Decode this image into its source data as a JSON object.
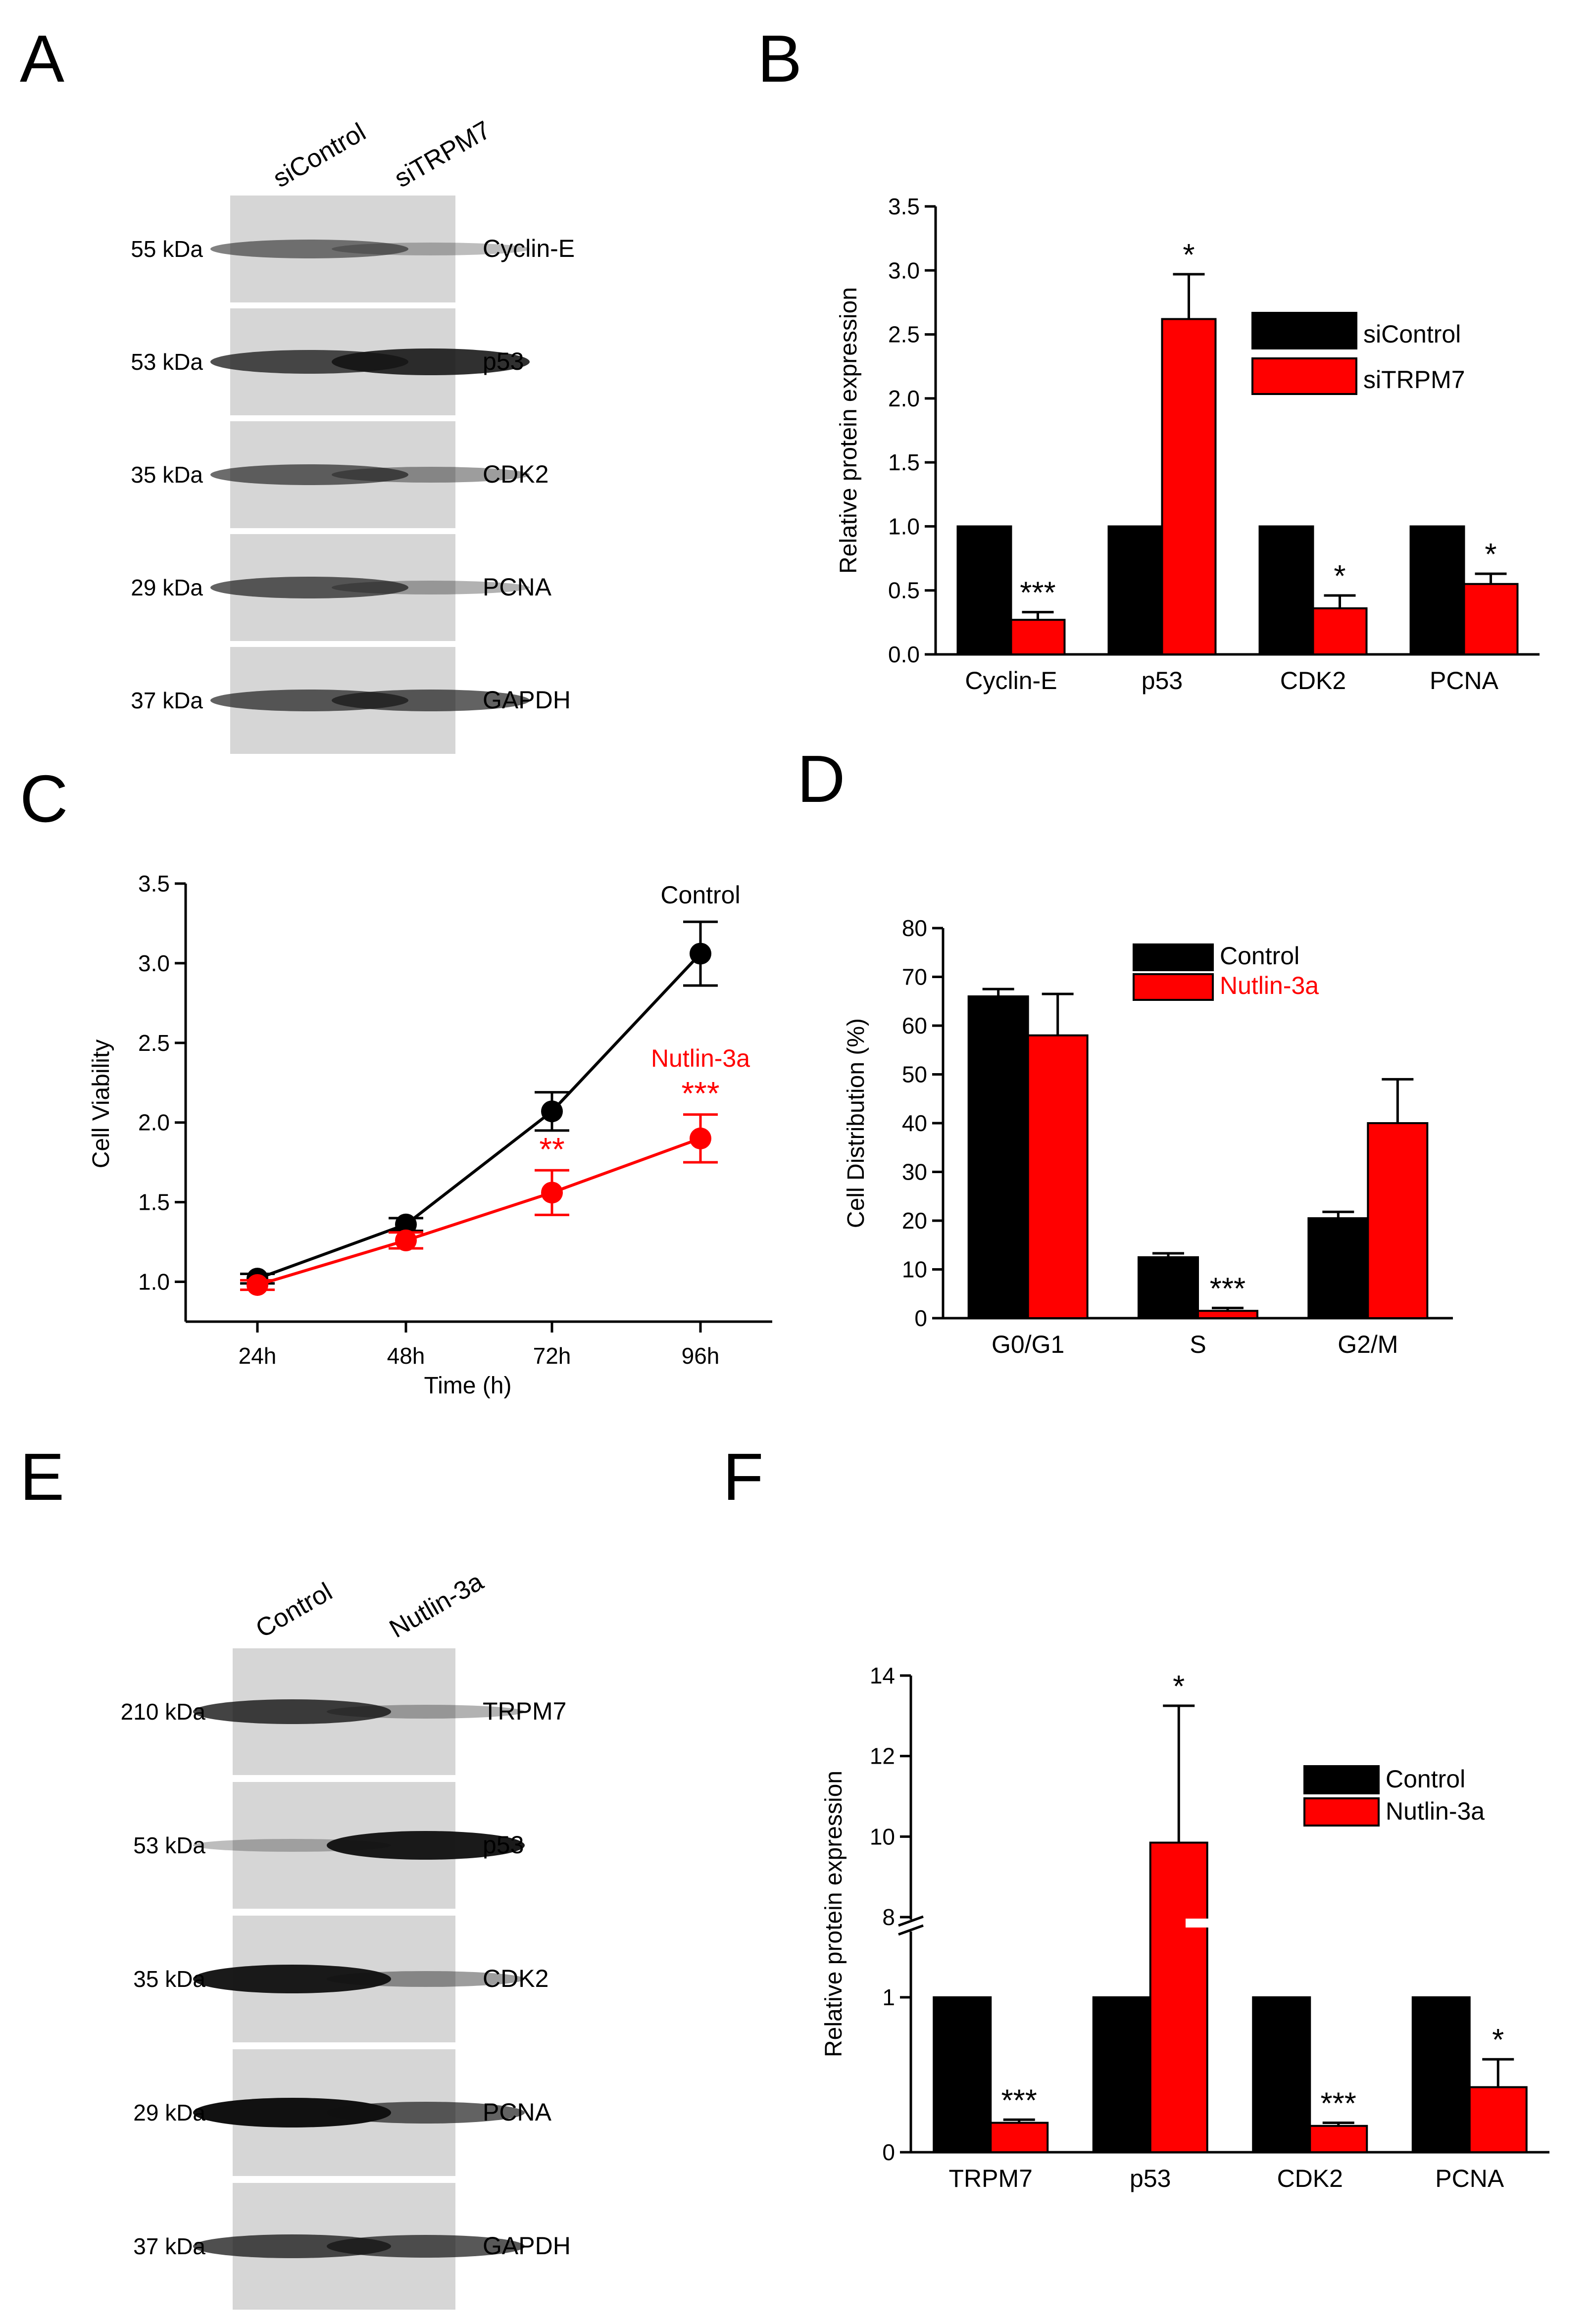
{
  "colors": {
    "control": "#000000",
    "treatment": "#ff0000",
    "blot_bg": "#d6d6d6",
    "band": "#3a3a3a"
  },
  "panel_labels": [
    "A",
    "B",
    "C",
    "D",
    "E",
    "F"
  ],
  "blot_A": {
    "lanes": [
      "siControl",
      "siTRPM7"
    ],
    "rows": [
      {
        "mw": "55 kDa",
        "protein": "Cyclin-E",
        "band_intensity": [
          0.45,
          0.15
        ]
      },
      {
        "mw": "53 kDa",
        "protein": "p53",
        "band_intensity": [
          0.7,
          0.85
        ]
      },
      {
        "mw": "35 kDa",
        "protein": "CDK2",
        "band_intensity": [
          0.55,
          0.3
        ]
      },
      {
        "mw": "29 kDa",
        "protein": "PCNA",
        "band_intensity": [
          0.6,
          0.2
        ]
      },
      {
        "mw": "37 kDa",
        "protein": "GAPDH",
        "band_intensity": [
          0.6,
          0.6
        ]
      }
    ]
  },
  "blot_E": {
    "lanes": [
      "Control",
      "Nutlin-3a"
    ],
    "rows": [
      {
        "mw": "210 kDa",
        "protein": "TRPM7",
        "band_intensity": [
          0.75,
          0.2
        ]
      },
      {
        "mw": "53 kDa",
        "protein": "p53",
        "band_intensity": [
          0.15,
          0.95
        ]
      },
      {
        "mw": "35 kDa",
        "protein": "CDK2",
        "band_intensity": [
          0.95,
          0.3
        ]
      },
      {
        "mw": "29 kDa",
        "protein": "PCNA",
        "band_intensity": [
          1.0,
          0.6
        ]
      },
      {
        "mw": "37 kDa",
        "protein": "GAPDH",
        "band_intensity": [
          0.7,
          0.65
        ]
      }
    ]
  },
  "chart_data": [
    {
      "id": "B",
      "type": "bar",
      "title": "",
      "xlabel": "",
      "ylabel": "Relative protein expression",
      "ylim": [
        0,
        3.5
      ],
      "yticks": [
        "0.0",
        "0.5",
        "1.0",
        "1.5",
        "2.0",
        "2.5",
        "3.0",
        "3.5"
      ],
      "categories": [
        "Cyclin-E",
        "p53",
        "CDK2",
        "PCNA"
      ],
      "series": [
        {
          "name": "siControl",
          "values": [
            1.0,
            1.0,
            1.0,
            1.0
          ],
          "errors": [
            0,
            0,
            0,
            0
          ]
        },
        {
          "name": "siTRPM7",
          "values": [
            0.27,
            2.62,
            0.36,
            0.55
          ],
          "errors": [
            0.06,
            0.35,
            0.1,
            0.08
          ]
        }
      ],
      "significance": [
        "***",
        "*",
        "*",
        "*"
      ],
      "legend": "top-right"
    },
    {
      "id": "C",
      "type": "line",
      "xlabel": "Time (h)",
      "ylabel": "Cell Viability",
      "categories": [
        "24h",
        "48h",
        "72h",
        "96h"
      ],
      "ylim": [
        0.75,
        3.5
      ],
      "yticks": [
        "1.0",
        "1.5",
        "2.0",
        "2.5",
        "3.0",
        "3.5"
      ],
      "series": [
        {
          "name": "Control",
          "values": [
            1.02,
            1.36,
            2.07,
            3.06
          ],
          "errors": [
            0.03,
            0.04,
            0.12,
            0.2
          ]
        },
        {
          "name": "Nutlin-3a",
          "values": [
            0.98,
            1.26,
            1.56,
            1.9
          ],
          "errors": [
            0.03,
            0.05,
            0.14,
            0.15
          ]
        }
      ],
      "significance": [
        "",
        "",
        "**",
        "***"
      ]
    },
    {
      "id": "D",
      "type": "bar",
      "xlabel": "",
      "ylabel": "Cell Distribution (%)",
      "ylim": [
        0,
        80
      ],
      "yticks": [
        "0",
        "10",
        "20",
        "30",
        "40",
        "50",
        "60",
        "70",
        "80"
      ],
      "categories": [
        "G0/G1",
        "S",
        "G2/M"
      ],
      "series": [
        {
          "name": "Control",
          "values": [
            66,
            12.5,
            20.5
          ],
          "errors": [
            1.5,
            0.8,
            1.3
          ]
        },
        {
          "name": "Nutlin-3a",
          "values": [
            58,
            1.5,
            40
          ],
          "errors": [
            8.5,
            0.6,
            9
          ]
        }
      ],
      "significance": [
        "",
        "***",
        ""
      ],
      "legend": "top-center"
    },
    {
      "id": "F",
      "type": "bar",
      "xlabel": "",
      "ylabel": "Relative protein expression",
      "ylim": [
        0,
        14
      ],
      "axis_break": [
        1.05,
        8
      ],
      "yticks": [
        "0",
        "1",
        "8",
        "10",
        "12",
        "14"
      ],
      "categories": [
        "TRPM7",
        "p53",
        "CDK2",
        "PCNA"
      ],
      "series": [
        {
          "name": "Control",
          "values": [
            1,
            1,
            1,
            1
          ],
          "errors": [
            0,
            0,
            0,
            0
          ]
        },
        {
          "name": "Nutlin-3a",
          "values": [
            0.19,
            9.85,
            0.17,
            0.42
          ],
          "errors": [
            0.02,
            3.4,
            0.02,
            0.18
          ]
        }
      ],
      "significance": [
        "***",
        "*",
        "***",
        "*"
      ],
      "legend": "top-right"
    }
  ]
}
